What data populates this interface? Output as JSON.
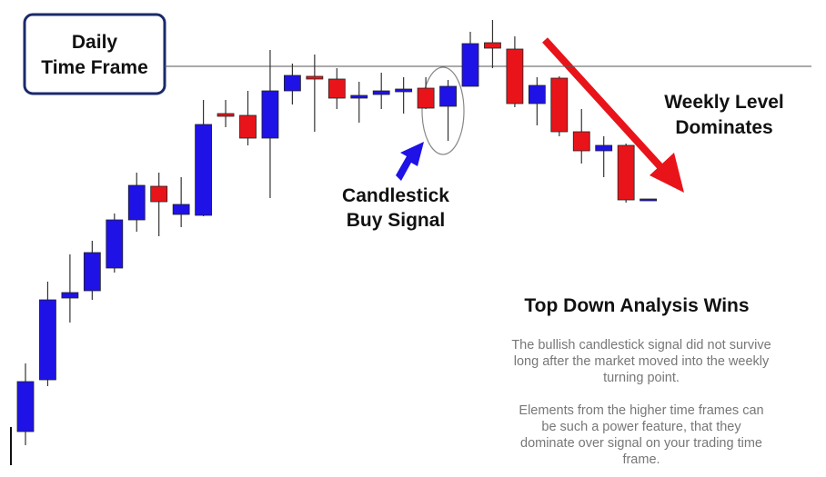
{
  "chart_data": {
    "type": "candlestick",
    "open": [
      50,
      107,
      197,
      205,
      230,
      283,
      320,
      289,
      288,
      400,
      398,
      373,
      425,
      441,
      438,
      417,
      421,
      424,
      428,
      408,
      430,
      478,
      471,
      411,
      439,
      380,
      359,
      365,
      304
    ],
    "close": [
      105,
      195,
      203,
      247,
      283,
      321,
      303,
      300,
      388,
      397,
      373,
      425,
      442,
      438,
      417,
      420,
      425,
      427,
      406,
      430,
      477,
      472,
      411,
      431,
      380,
      359,
      365,
      305,
      306
    ],
    "high": [
      125,
      215,
      245,
      260,
      290,
      335,
      335,
      330,
      415,
      415,
      425,
      470,
      455,
      465,
      450,
      435,
      445,
      440,
      440,
      437,
      490,
      503,
      485,
      440,
      441,
      405,
      375,
      367,
      306
    ],
    "low": [
      35,
      100,
      170,
      195,
      225,
      270,
      265,
      275,
      287,
      385,
      365,
      307,
      410,
      380,
      405,
      390,
      405,
      400,
      405,
      370,
      430,
      450,
      407,
      387,
      375,
      345,
      330,
      302,
      304
    ],
    "up_color": "#1e12e6",
    "down_color": "#e8141a",
    "ylim": [
      0,
      525
    ],
    "level": 452,
    "box_label": [
      "Daily",
      "Time Frame"
    ],
    "signal_label": [
      "Candlestick",
      "Buy Signal"
    ],
    "weekly_label": [
      "Weekly Level",
      "Dominates"
    ],
    "heading": "Top Down Analysis Wins",
    "paragraphs": [
      [
        "The bullish candlestick signal did not survive",
        "long after the market moved into the weekly",
        "turning point."
      ],
      [
        "Elements from the higher time frames can",
        "be such a power feature, that they",
        "dominate over signal on your trading time",
        "frame."
      ]
    ]
  }
}
